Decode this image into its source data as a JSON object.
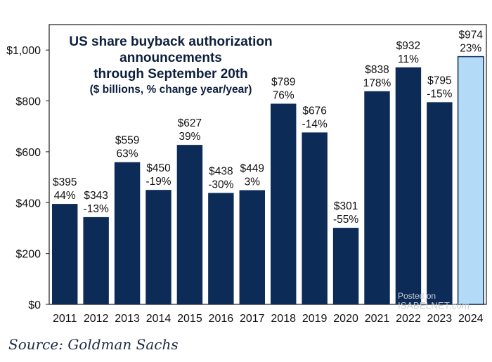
{
  "title": {
    "line1": "US share buyback authorization",
    "line2": "announcements",
    "line3": "through September 20th",
    "subtitle": "($ billions, % change year/year)"
  },
  "source": "Source: Goldman Sachs",
  "watermark": {
    "line1": "Posted on",
    "line2": "ISABELNET.com"
  },
  "colors": {
    "bar": "#0d2b57",
    "bar_highlight": "#b3daf7",
    "axis": "#1a1a1a",
    "text": "#111111"
  },
  "chart_data": {
    "type": "bar",
    "title": "US share buyback authorization announcements through September 20th",
    "subtitle": "($ billions, % change year/year)",
    "xlabel": "",
    "ylabel": "",
    "ylim": [
      0,
      1100
    ],
    "grid": false,
    "categories": [
      "2011",
      "2012",
      "2013",
      "2014",
      "2015",
      "2016",
      "2017",
      "2018",
      "2019",
      "2020",
      "2021",
      "2022",
      "2023",
      "2024"
    ],
    "values": [
      395,
      343,
      559,
      450,
      627,
      438,
      449,
      789,
      676,
      301,
      838,
      932,
      795,
      974
    ],
    "value_labels": [
      "$395",
      "$343",
      "$559",
      "$450",
      "$627",
      "$438",
      "$449",
      "$789",
      "$676",
      "$301",
      "$838",
      "$932",
      "$795",
      "$974"
    ],
    "change_labels": [
      "44%",
      "-13%",
      "63%",
      "-19%",
      "39%",
      "-30%",
      "3%",
      "76%",
      "-14%",
      "-55%",
      "178%",
      "11%",
      "-15%",
      "23%"
    ],
    "highlight_index": 13,
    "yticks": [
      0,
      200,
      400,
      600,
      800,
      1000
    ],
    "ytick_labels": [
      "$0",
      "$200",
      "$400",
      "$600",
      "$800",
      "$1,000"
    ]
  }
}
